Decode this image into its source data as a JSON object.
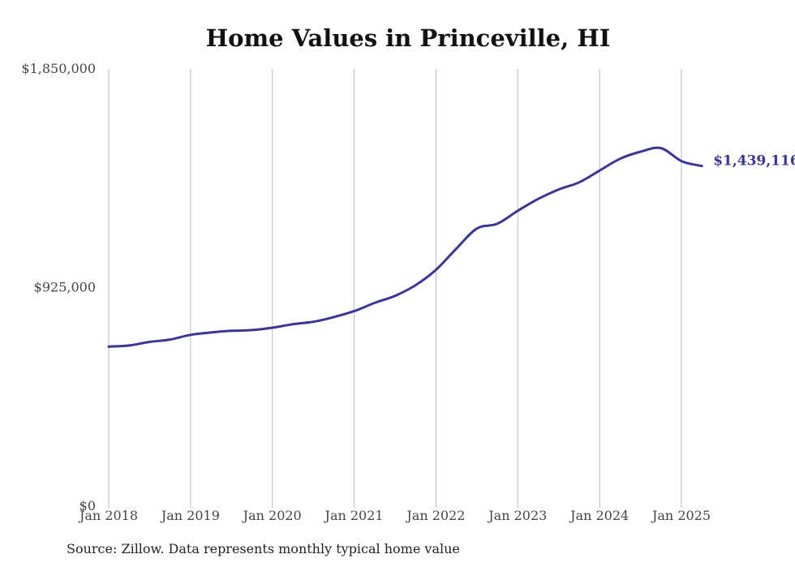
{
  "title": "Home Values in Princeville, HI",
  "source": "Source: Zillow. Data represents monthly typical home value",
  "colors": {
    "line": "#3b3597",
    "grid": "#bbbbbb",
    "text": "#444444"
  },
  "chart_data": {
    "type": "line",
    "title": "Home Values in Princeville, HI",
    "xlabel": "",
    "ylabel": "",
    "ylim": [
      0,
      1850000
    ],
    "yticks": [
      {
        "value": 0,
        "label": "$0"
      },
      {
        "value": 925000,
        "label": "$925,000"
      },
      {
        "value": 1850000,
        "label": "$1,850,000"
      }
    ],
    "xticks": [
      {
        "value": "2018-01",
        "label": "Jan 2018"
      },
      {
        "value": "2019-01",
        "label": "Jan 2019"
      },
      {
        "value": "2020-01",
        "label": "Jan 2020"
      },
      {
        "value": "2021-01",
        "label": "Jan 2021"
      },
      {
        "value": "2022-01",
        "label": "Jan 2022"
      },
      {
        "value": "2023-01",
        "label": "Jan 2023"
      },
      {
        "value": "2024-01",
        "label": "Jan 2024"
      },
      {
        "value": "2025-01",
        "label": "Jan 2025"
      }
    ],
    "grid": "vertical",
    "end_label": "$1,439,116",
    "series": [
      {
        "x": [
          "2018-01",
          "2018-04",
          "2018-07",
          "2018-10",
          "2019-01",
          "2019-04",
          "2019-07",
          "2019-10",
          "2020-01",
          "2020-04",
          "2020-07",
          "2020-10",
          "2021-01",
          "2021-04",
          "2021-07",
          "2021-10",
          "2022-01",
          "2022-04",
          "2022-07",
          "2022-10",
          "2023-01",
          "2023-04",
          "2023-07",
          "2023-10",
          "2024-01",
          "2024-04",
          "2024-07",
          "2024-10",
          "2025-01",
          "2025-04"
        ],
        "values": [
          675000,
          680000,
          695000,
          705000,
          725000,
          735000,
          742000,
          745000,
          755000,
          770000,
          780000,
          800000,
          825000,
          860000,
          890000,
          935000,
          1000000,
          1090000,
          1175000,
          1195000,
          1250000,
          1300000,
          1340000,
          1370000,
          1420000,
          1470000,
          1500000,
          1515000,
          1460000,
          1439116
        ]
      }
    ]
  }
}
